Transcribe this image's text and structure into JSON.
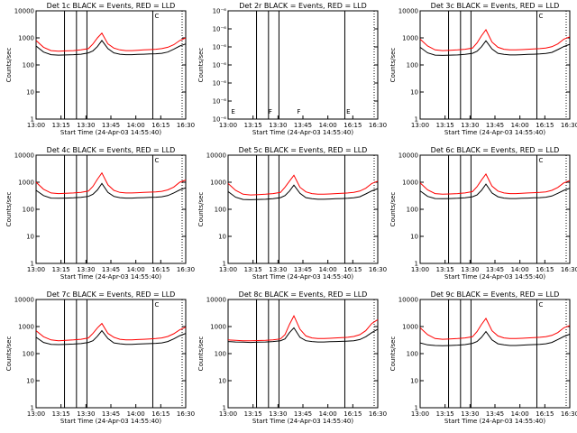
{
  "figure": {
    "xlabel": "Start Time (24-Apr-03 14:55:40)",
    "ylabel": "Counts/sec",
    "x_ticks": [
      "13:00",
      "13:15",
      "13:30",
      "13:45",
      "14:00",
      "16:15",
      "16:30"
    ],
    "colors": {
      "events": "#000000",
      "lld": "#ff0000"
    }
  },
  "chart_data": [
    {
      "title": "Det 1c BLACK = Events, RED = LLD",
      "type": "line",
      "yscale": "log",
      "ylim": [
        1,
        10000
      ],
      "y_ticks": [
        "1",
        "10",
        "100",
        "1000",
        "10000"
      ],
      "top_markers": [
        "C"
      ],
      "bottom_markers": [],
      "x": [
        0,
        5,
        10,
        15,
        20,
        25,
        30,
        35,
        38,
        41,
        44,
        48,
        52,
        56,
        60,
        64,
        68,
        72,
        76,
        80,
        84,
        88,
        92,
        96,
        100
      ],
      "series": [
        {
          "name": "BLACK = Events",
          "values": [
            500,
            300,
            240,
            230,
            235,
            240,
            250,
            280,
            330,
            480,
            800,
            400,
            280,
            250,
            240,
            240,
            245,
            250,
            255,
            260,
            270,
            300,
            380,
            500,
            600
          ]
        },
        {
          "name": "RED = LLD",
          "values": [
            800,
            450,
            340,
            320,
            330,
            340,
            360,
            400,
            600,
            1000,
            1500,
            600,
            420,
            360,
            340,
            340,
            350,
            360,
            370,
            380,
            400,
            450,
            560,
            800,
            1000
          ]
        }
      ]
    },
    {
      "title": "Det 2r BLACK = Events, RED = LLD",
      "type": "line",
      "yscale": "log",
      "ylim": [
        1e-06,
        1e-05
      ],
      "y_ticks": [
        "10⁻⁶",
        "10⁻⁶",
        "10⁻⁶",
        "10⁻⁶",
        "10⁻⁶",
        "10⁻⁶",
        "10⁻⁶"
      ],
      "top_markers": [],
      "bottom_markers": [
        "E",
        "F",
        "F",
        "E"
      ],
      "x": [],
      "series": []
    },
    {
      "title": "Det 3c BLACK = Events, RED = LLD",
      "type": "line",
      "yscale": "log",
      "ylim": [
        1,
        10000
      ],
      "y_ticks": [
        "1",
        "10",
        "100",
        "1000",
        "10000"
      ],
      "top_markers": [
        "C"
      ],
      "bottom_markers": [],
      "x": [
        0,
        5,
        10,
        15,
        20,
        25,
        30,
        35,
        38,
        41,
        44,
        48,
        52,
        56,
        60,
        64,
        68,
        72,
        76,
        80,
        84,
        88,
        92,
        96,
        100
      ],
      "series": [
        {
          "name": "BLACK = Events",
          "values": [
            450,
            280,
            230,
            225,
            230,
            235,
            245,
            270,
            320,
            470,
            780,
            390,
            270,
            245,
            235,
            235,
            240,
            245,
            250,
            255,
            265,
            290,
            370,
            480,
            580
          ]
        },
        {
          "name": "RED = LLD",
          "values": [
            900,
            500,
            360,
            340,
            350,
            360,
            380,
            420,
            650,
            1200,
            2000,
            700,
            450,
            380,
            360,
            360,
            370,
            380,
            390,
            400,
            420,
            470,
            600,
            900,
            1100
          ]
        }
      ]
    },
    {
      "title": "Det 4c BLACK = Events, RED = LLD",
      "type": "line",
      "yscale": "log",
      "ylim": [
        1,
        10000
      ],
      "y_ticks": [
        "1",
        "10",
        "100",
        "1000",
        "10000"
      ],
      "top_markers": [
        "C"
      ],
      "bottom_markers": [],
      "x": [
        0,
        5,
        10,
        15,
        20,
        25,
        30,
        35,
        38,
        41,
        44,
        48,
        52,
        56,
        60,
        64,
        68,
        72,
        76,
        80,
        84,
        88,
        92,
        96,
        100
      ],
      "series": [
        {
          "name": "BLACK = Events",
          "values": [
            500,
            320,
            260,
            255,
            260,
            265,
            275,
            300,
            360,
            520,
            900,
            420,
            300,
            270,
            260,
            260,
            265,
            270,
            275,
            280,
            290,
            320,
            400,
            520,
            620
          ]
        },
        {
          "name": "RED = LLD",
          "values": [
            1000,
            550,
            400,
            380,
            390,
            400,
            420,
            470,
            700,
            1300,
            2200,
            800,
            500,
            420,
            400,
            400,
            410,
            420,
            430,
            440,
            460,
            520,
            660,
            1000,
            1200
          ]
        }
      ]
    },
    {
      "title": "Det 5c BLACK = Events, RED = LLD",
      "type": "line",
      "yscale": "log",
      "ylim": [
        1,
        10000
      ],
      "y_ticks": [
        "1",
        "10",
        "100",
        "1000",
        "10000"
      ],
      "top_markers": [],
      "bottom_markers": [],
      "x": [
        0,
        5,
        10,
        15,
        20,
        25,
        30,
        35,
        38,
        41,
        44,
        48,
        52,
        56,
        60,
        64,
        68,
        72,
        76,
        80,
        84,
        88,
        92,
        96,
        100
      ],
      "series": [
        {
          "name": "BLACK = Events",
          "values": [
            450,
            280,
            230,
            225,
            230,
            235,
            245,
            270,
            320,
            470,
            780,
            390,
            270,
            245,
            235,
            235,
            240,
            245,
            250,
            255,
            265,
            290,
            370,
            480,
            580
          ]
        },
        {
          "name": "RED = LLD",
          "values": [
            900,
            500,
            360,
            340,
            350,
            360,
            380,
            420,
            650,
            1100,
            1800,
            650,
            440,
            380,
            360,
            360,
            370,
            380,
            390,
            400,
            420,
            470,
            600,
            900,
            1100
          ]
        }
      ]
    },
    {
      "title": "Det 6c BLACK = Events, RED = LLD",
      "type": "line",
      "yscale": "log",
      "ylim": [
        1,
        10000
      ],
      "y_ticks": [
        "1",
        "10",
        "100",
        "1000",
        "10000"
      ],
      "top_markers": [
        "C"
      ],
      "bottom_markers": [],
      "x": [
        0,
        5,
        10,
        15,
        20,
        25,
        30,
        35,
        38,
        41,
        44,
        48,
        52,
        56,
        60,
        64,
        68,
        72,
        76,
        80,
        84,
        88,
        92,
        96,
        100
      ],
      "series": [
        {
          "name": "BLACK = Events",
          "values": [
            480,
            300,
            250,
            245,
            250,
            255,
            265,
            290,
            340,
            500,
            850,
            400,
            290,
            260,
            250,
            250,
            255,
            260,
            265,
            270,
            280,
            310,
            390,
            500,
            600
          ]
        },
        {
          "name": "RED = LLD",
          "values": [
            950,
            520,
            380,
            360,
            370,
            380,
            400,
            450,
            680,
            1200,
            2000,
            720,
            470,
            400,
            380,
            380,
            390,
            400,
            410,
            420,
            440,
            500,
            640,
            950,
            1150
          ]
        }
      ]
    },
    {
      "title": "Det 7c BLACK = Events, RED = LLD",
      "type": "line",
      "yscale": "log",
      "ylim": [
        1,
        10000
      ],
      "y_ticks": [
        "1",
        "10",
        "100",
        "1000",
        "10000"
      ],
      "top_markers": [
        "C"
      ],
      "bottom_markers": [],
      "x": [
        0,
        5,
        10,
        15,
        20,
        25,
        30,
        35,
        38,
        41,
        44,
        48,
        52,
        56,
        60,
        64,
        68,
        72,
        76,
        80,
        84,
        88,
        92,
        96,
        100
      ],
      "series": [
        {
          "name": "BLACK = Events",
          "values": [
            400,
            260,
            220,
            215,
            220,
            225,
            235,
            260,
            300,
            440,
            700,
            360,
            250,
            230,
            220,
            220,
            225,
            230,
            235,
            240,
            250,
            280,
            350,
            460,
            560
          ]
        },
        {
          "name": "RED = LLD",
          "values": [
            700,
            420,
            320,
            300,
            310,
            320,
            340,
            380,
            560,
            900,
            1300,
            560,
            400,
            340,
            320,
            320,
            330,
            340,
            350,
            360,
            380,
            430,
            540,
            760,
            950
          ]
        }
      ]
    },
    {
      "title": "Det 8c BLACK = Events, RED = LLD",
      "type": "line",
      "yscale": "log",
      "ylim": [
        1,
        10000
      ],
      "y_ticks": [
        "1",
        "10",
        "100",
        "1000",
        "10000"
      ],
      "top_markers": [],
      "bottom_markers": [],
      "x": [
        0,
        5,
        10,
        15,
        20,
        25,
        30,
        35,
        38,
        41,
        44,
        48,
        52,
        56,
        60,
        64,
        68,
        72,
        76,
        80,
        84,
        88,
        92,
        96,
        100
      ],
      "series": [
        {
          "name": "BLACK = Events",
          "values": [
            280,
            270,
            265,
            260,
            265,
            270,
            280,
            300,
            350,
            600,
            900,
            400,
            300,
            280,
            270,
            270,
            275,
            280,
            285,
            290,
            300,
            330,
            420,
            600,
            800
          ]
        },
        {
          "name": "RED = LLD",
          "values": [
            320,
            310,
            300,
            300,
            305,
            310,
            320,
            350,
            500,
            1200,
            2500,
            800,
            450,
            380,
            360,
            360,
            370,
            380,
            390,
            400,
            430,
            500,
            700,
            1300,
            1800
          ]
        }
      ]
    },
    {
      "title": "Det 9c BLACK = Events, RED = LLD",
      "type": "line",
      "yscale": "log",
      "ylim": [
        1,
        10000
      ],
      "y_ticks": [
        "1",
        "10",
        "100",
        "1000",
        "10000"
      ],
      "top_markers": [
        "C"
      ],
      "bottom_markers": [],
      "x": [
        0,
        5,
        10,
        15,
        20,
        25,
        30,
        35,
        38,
        41,
        44,
        48,
        52,
        56,
        60,
        64,
        68,
        72,
        76,
        80,
        84,
        88,
        92,
        96,
        100
      ],
      "series": [
        {
          "name": "BLACK = Events",
          "values": [
            250,
            210,
            200,
            195,
            200,
            205,
            215,
            240,
            280,
            400,
            650,
            320,
            230,
            210,
            200,
            200,
            205,
            210,
            215,
            220,
            230,
            260,
            330,
            430,
            520
          ]
        },
        {
          "name": "RED = LLD",
          "values": [
            900,
            500,
            360,
            340,
            350,
            360,
            380,
            420,
            650,
            1200,
            2000,
            700,
            450,
            380,
            360,
            360,
            370,
            380,
            390,
            400,
            420,
            470,
            600,
            900,
            1100
          ]
        }
      ]
    }
  ]
}
